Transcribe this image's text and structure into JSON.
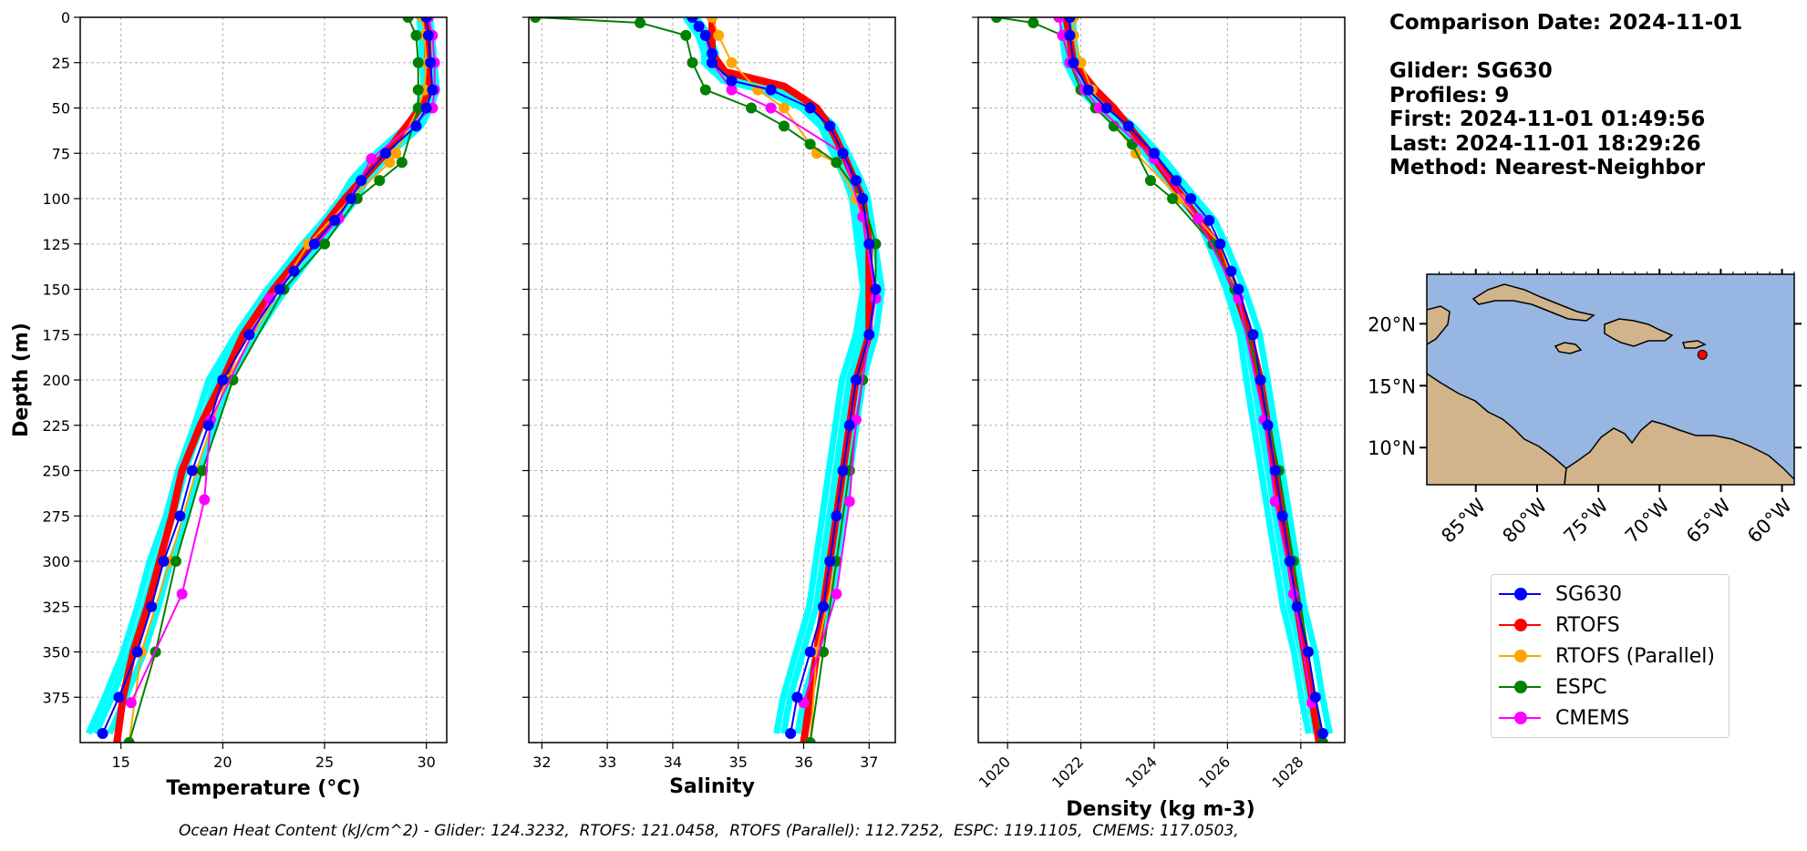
{
  "info": {
    "comparison_date": "Comparison Date: 2024-11-01",
    "glider": "Glider: SG630",
    "profiles": "Profiles: 9",
    "first": "First: 2024-11-01 01:49:56",
    "last": "Last: 2024-11-01 18:29:26",
    "method": "Method: Nearest-Neighbor"
  },
  "footer": "Ocean Heat Content (kJ/cm^2) - Glider: 124.3232,  RTOFS: 121.0458,  RTOFS (Parallel): 112.7252,  ESPC: 119.1105,  CMEMS: 117.0503,",
  "legend": [
    {
      "label": "SG630",
      "color": "#0000ff"
    },
    {
      "label": "RTOFS",
      "color": "#ff0000"
    },
    {
      "label": "RTOFS (Parallel)",
      "color": "#ffa500"
    },
    {
      "label": "ESPC",
      "color": "#008000"
    },
    {
      "label": "CMEMS",
      "color": "#ff00ff"
    }
  ],
  "map": {
    "lat_ticks": [
      "20°N",
      "15°N",
      "10°N"
    ],
    "lon_ticks": [
      "85°W",
      "80°W",
      "75°W",
      "70°W",
      "65°W",
      "60°W"
    ],
    "glider_location": {
      "lon": -66.5,
      "lat": 17.5
    },
    "extent": {
      "lon": [
        -89,
        -59
      ],
      "lat": [
        7,
        24
      ]
    }
  },
  "chart_data": [
    {
      "type": "line",
      "xlabel": "Temperature (°C)",
      "ylabel": "Depth (m)",
      "xlim": [
        13,
        31
      ],
      "ylim": [
        400,
        0
      ],
      "xticks": [
        15,
        20,
        25,
        30
      ],
      "yticks": [
        0,
        25,
        50,
        75,
        100,
        125,
        150,
        175,
        200,
        225,
        250,
        275,
        300,
        325,
        350,
        375
      ],
      "grid": true,
      "series": [
        {
          "name": "SG630",
          "depth": [
            0,
            10,
            25,
            40,
            50,
            60,
            75,
            90,
            100,
            112,
            125,
            140,
            150,
            175,
            200,
            225,
            250,
            275,
            300,
            325,
            350,
            375,
            395
          ],
          "values": [
            30.0,
            30.1,
            30.2,
            30.3,
            30.0,
            29.5,
            28.0,
            26.8,
            26.3,
            25.5,
            24.5,
            23.5,
            22.8,
            21.3,
            20.0,
            19.3,
            18.5,
            17.9,
            17.1,
            16.5,
            15.8,
            14.9,
            14.1
          ]
        },
        {
          "name": "RTOFS",
          "depth": [
            0,
            25,
            40,
            50,
            75,
            100,
            125,
            150,
            175,
            200,
            225,
            250,
            275,
            300,
            325,
            350,
            375,
            400
          ],
          "values": [
            30.0,
            30.1,
            30.1,
            29.7,
            28.0,
            26.0,
            24.3,
            22.5,
            21.0,
            20.0,
            18.9,
            18.0,
            17.5,
            16.9,
            16.3,
            15.6,
            15.1,
            14.8
          ]
        },
        {
          "name": "RTOFS (Parallel)",
          "depth": [
            0,
            10,
            25,
            40,
            50,
            75,
            80,
            100,
            125,
            150,
            200,
            250,
            300,
            350,
            400
          ],
          "values": [
            29.8,
            29.9,
            30.0,
            29.9,
            29.6,
            28.5,
            28.2,
            26.3,
            24.2,
            22.8,
            20.2,
            18.7,
            17.4,
            16.0,
            15.4
          ]
        },
        {
          "name": "ESPC",
          "depth": [
            0,
            10,
            25,
            40,
            50,
            80,
            90,
            100,
            125,
            150,
            200,
            250,
            300,
            350,
            400
          ],
          "values": [
            29.1,
            29.5,
            29.6,
            29.6,
            29.6,
            28.8,
            27.7,
            26.6,
            25.0,
            23.0,
            20.5,
            19.0,
            17.7,
            16.7,
            15.4
          ]
        },
        {
          "name": "CMEMS",
          "depth": [
            0,
            10,
            25,
            40,
            50,
            78,
            111,
            155,
            222,
            266,
            318,
            378
          ],
          "values": [
            30.1,
            30.3,
            30.4,
            30.4,
            30.3,
            27.3,
            25.7,
            22.3,
            19.4,
            19.1,
            18.0,
            15.5
          ]
        }
      ]
    },
    {
      "type": "line",
      "xlabel": "Salinity",
      "xlim": [
        31.8,
        37.4
      ],
      "ylim": [
        400,
        0
      ],
      "xticks": [
        32,
        33,
        34,
        35,
        36,
        37
      ],
      "grid": true,
      "series": [
        {
          "name": "SG630",
          "depth": [
            0,
            5,
            10,
            20,
            25,
            35,
            40,
            50,
            60,
            75,
            90,
            100,
            125,
            150,
            175,
            200,
            225,
            250,
            275,
            300,
            325,
            350,
            375,
            395
          ],
          "values": [
            34.3,
            34.4,
            34.5,
            34.6,
            34.6,
            34.9,
            35.5,
            36.1,
            36.4,
            36.6,
            36.8,
            36.9,
            37.0,
            37.1,
            37.0,
            36.8,
            36.7,
            36.6,
            36.5,
            36.4,
            36.3,
            36.1,
            35.9,
            35.8
          ]
        },
        {
          "name": "RTOFS",
          "depth": [
            0,
            20,
            30,
            38,
            45,
            50,
            60,
            75,
            100,
            125,
            150,
            175,
            200,
            250,
            300,
            350,
            400
          ],
          "values": [
            34.6,
            34.6,
            34.8,
            35.7,
            36.0,
            36.2,
            36.4,
            36.6,
            36.9,
            37.0,
            37.0,
            37.0,
            36.8,
            36.6,
            36.4,
            36.2,
            36.0
          ]
        },
        {
          "name": "RTOFS (Parallel)",
          "depth": [
            0,
            10,
            25,
            40,
            50,
            75,
            80,
            100,
            125,
            150,
            200,
            250,
            300,
            350,
            400
          ],
          "values": [
            34.6,
            34.7,
            34.9,
            35.3,
            35.7,
            36.2,
            36.5,
            36.8,
            37.0,
            37.1,
            36.9,
            36.7,
            36.5,
            36.2,
            36.1
          ]
        },
        {
          "name": "ESPC",
          "depth": [
            0,
            3,
            10,
            25,
            40,
            50,
            60,
            70,
            80,
            100,
            125,
            150,
            200,
            250,
            300,
            350,
            400
          ],
          "values": [
            31.9,
            33.5,
            34.2,
            34.3,
            34.5,
            35.2,
            35.7,
            36.1,
            36.5,
            36.9,
            37.1,
            37.1,
            36.9,
            36.7,
            36.5,
            36.3,
            36.1
          ]
        },
        {
          "name": "CMEMS",
          "depth": [
            0,
            10,
            25,
            40,
            50,
            75,
            110,
            155,
            222,
            267,
            318,
            378
          ],
          "values": [
            34.3,
            34.5,
            34.6,
            34.9,
            35.5,
            36.6,
            36.9,
            37.1,
            36.8,
            36.7,
            36.5,
            36.0
          ]
        }
      ]
    },
    {
      "type": "line",
      "xlabel": "Density (kg m-3)",
      "xlim": [
        1019.2,
        1029.2
      ],
      "ylim": [
        400,
        0
      ],
      "xticks": [
        1020,
        1022,
        1024,
        1026,
        1028
      ],
      "grid": true,
      "series": [
        {
          "name": "SG630",
          "depth": [
            0,
            10,
            25,
            40,
            50,
            60,
            75,
            90,
            100,
            112,
            125,
            140,
            150,
            175,
            200,
            225,
            250,
            275,
            300,
            325,
            350,
            375,
            395
          ],
          "values": [
            1021.7,
            1021.7,
            1021.8,
            1022.2,
            1022.7,
            1023.3,
            1024.0,
            1024.6,
            1025.0,
            1025.5,
            1025.8,
            1026.1,
            1026.3,
            1026.7,
            1026.9,
            1027.1,
            1027.3,
            1027.5,
            1027.7,
            1027.9,
            1028.2,
            1028.4,
            1028.6
          ]
        },
        {
          "name": "RTOFS",
          "depth": [
            0,
            25,
            40,
            50,
            75,
            100,
            125,
            150,
            175,
            200,
            250,
            300,
            350,
            400
          ],
          "values": [
            1021.6,
            1021.8,
            1022.4,
            1022.9,
            1023.9,
            1024.8,
            1025.7,
            1026.2,
            1026.6,
            1026.9,
            1027.3,
            1027.7,
            1028.1,
            1028.5
          ]
        },
        {
          "name": "RTOFS (Parallel)",
          "depth": [
            0,
            10,
            25,
            40,
            50,
            75,
            100,
            125,
            150,
            200,
            250,
            300,
            350,
            400
          ],
          "values": [
            1021.8,
            1021.8,
            1022.0,
            1022.3,
            1022.6,
            1023.5,
            1024.7,
            1025.8,
            1026.2,
            1026.9,
            1027.4,
            1027.8,
            1028.2,
            1028.6
          ]
        },
        {
          "name": "ESPC",
          "depth": [
            0,
            3,
            10,
            25,
            40,
            50,
            60,
            70,
            90,
            100,
            125,
            150,
            200,
            250,
            300,
            350,
            400
          ],
          "values": [
            1019.7,
            1020.7,
            1021.5,
            1021.7,
            1022.0,
            1022.4,
            1022.9,
            1023.4,
            1023.9,
            1024.5,
            1025.6,
            1026.2,
            1026.9,
            1027.4,
            1027.8,
            1028.2,
            1028.6
          ]
        },
        {
          "name": "CMEMS",
          "depth": [
            0,
            10,
            25,
            40,
            50,
            78,
            111,
            155,
            222,
            267,
            318,
            378
          ],
          "values": [
            1021.4,
            1021.5,
            1021.7,
            1022.1,
            1022.5,
            1024.0,
            1025.2,
            1026.3,
            1027.0,
            1027.3,
            1027.8,
            1028.3
          ]
        }
      ]
    }
  ]
}
